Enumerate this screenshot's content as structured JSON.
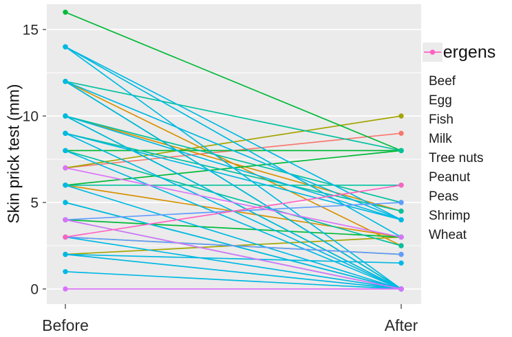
{
  "chart_data": {
    "type": "line",
    "subtype": "paired-slope-chart",
    "title": "",
    "ylabel": "Skin prick test (mm)",
    "x_categories": [
      "Before",
      "After"
    ],
    "yticks": [
      0,
      5,
      10,
      15
    ],
    "ylim": [
      -0.9,
      16.5
    ],
    "grid": {
      "major": [
        0,
        5,
        10,
        15
      ],
      "minor": [
        2.5,
        7.5,
        12.5
      ],
      "grid_on": true
    },
    "panel_background": "#EBEBEB",
    "gridline_color": "#FFFFFF",
    "legend_title": "Allergens",
    "legend_position": "right",
    "series": [
      {
        "name": "Beef",
        "color": "#F8766D",
        "pairs": [
          [
            7,
            9
          ]
        ]
      },
      {
        "name": "Egg",
        "color": "#D89000",
        "pairs": [
          [
            6,
            3
          ],
          [
            10,
            4.5
          ],
          [
            12,
            2.5
          ]
        ]
      },
      {
        "name": "Fish",
        "color": "#A3A500",
        "pairs": [
          [
            7,
            10
          ],
          [
            3,
            2
          ],
          [
            2,
            3
          ]
        ]
      },
      {
        "name": "Milk",
        "color": "#00BA38",
        "pairs": [
          [
            16,
            8
          ],
          [
            8,
            8
          ],
          [
            12,
            0
          ],
          [
            10,
            0
          ],
          [
            6,
            8
          ],
          [
            4,
            3
          ]
        ]
      },
      {
        "name": "Tree nuts",
        "color": "#00C19F",
        "pairs": [
          [
            12,
            8
          ],
          [
            10,
            5
          ],
          [
            9,
            4.5
          ],
          [
            8,
            2.5
          ],
          [
            6,
            6
          ],
          [
            5,
            0
          ],
          [
            4,
            0
          ]
        ]
      },
      {
        "name": "Peanut",
        "color": "#00B9E3",
        "pairs": [
          [
            14,
            0
          ],
          [
            14,
            4
          ],
          [
            14,
            3
          ],
          [
            12,
            0
          ],
          [
            12,
            4
          ],
          [
            10,
            0
          ],
          [
            10,
            4
          ],
          [
            9,
            0
          ],
          [
            9,
            4
          ],
          [
            8,
            0
          ],
          [
            6,
            0
          ],
          [
            5,
            0
          ],
          [
            3,
            0
          ],
          [
            2,
            0
          ],
          [
            2,
            1.5
          ],
          [
            1,
            0
          ]
        ]
      },
      {
        "name": "Peas",
        "color": "#619CFF",
        "pairs": [
          [
            4,
            5
          ],
          [
            3,
            2
          ]
        ]
      },
      {
        "name": "Shrimp",
        "color": "#DB72FB",
        "pairs": [
          [
            7,
            3
          ],
          [
            4,
            0
          ],
          [
            0,
            0
          ]
        ]
      },
      {
        "name": "Wheat",
        "color": "#FF61C3",
        "pairs": [
          [
            3,
            6
          ]
        ]
      }
    ]
  }
}
